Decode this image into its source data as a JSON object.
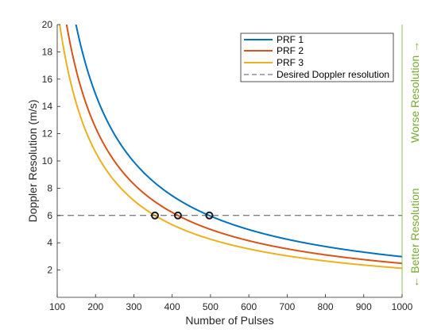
{
  "chart_data": {
    "type": "line",
    "xlabel": "Number of Pulses",
    "ylabel": "Doppler Resolution (m/s)",
    "xlim": [
      100,
      1000
    ],
    "ylim": [
      0,
      20
    ],
    "xticks": [
      100,
      200,
      300,
      400,
      500,
      600,
      700,
      800,
      900,
      1000
    ],
    "yticks": [
      2,
      4,
      6,
      8,
      10,
      12,
      14,
      16,
      18,
      20
    ],
    "grid": false,
    "legend_position": "top-right",
    "right_annotation": {
      "better": "← Better Resolution",
      "worse": "Worse Resolution →",
      "color": "#77ac30"
    },
    "series": [
      {
        "name": "PRF 1",
        "color": "#0072bd",
        "k": 2980
      },
      {
        "name": "PRF 2",
        "color": "#d95319",
        "k": 2490
      },
      {
        "name": "PRF 3",
        "color": "#edb120",
        "k": 2130
      }
    ],
    "reference_line": {
      "name": "Desired Doppler resolution",
      "y": 6,
      "color": "#555555"
    },
    "markers": [
      {
        "x": 355,
        "y": 6
      },
      {
        "x": 415,
        "y": 6
      },
      {
        "x": 497,
        "y": 6
      }
    ]
  }
}
